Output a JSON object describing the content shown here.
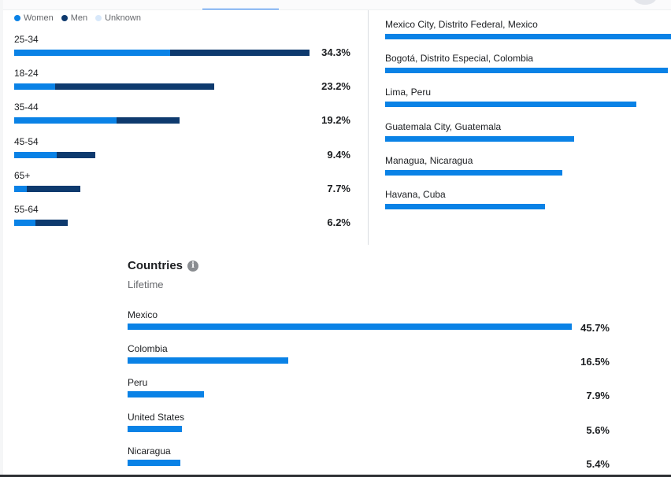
{
  "colors": {
    "women": "#0a82e6",
    "men": "#0e3a6e",
    "unknown": "#d8e8fa",
    "city": "#0a82e6",
    "country": "#0a82e6"
  },
  "legend": [
    {
      "label": "Women",
      "color": "#0a82e6"
    },
    {
      "label": "Men",
      "color": "#0e3a6e"
    },
    {
      "label": "Unknown",
      "color": "#d8e8fa"
    }
  ],
  "chart_data": [
    {
      "type": "bar",
      "stacked": true,
      "orientation": "horizontal",
      "categories": [
        "25-34",
        "18-24",
        "35-44",
        "45-54",
        "65+",
        "55-64"
      ],
      "total_labels": [
        "34.3%",
        "23.2%",
        "19.2%",
        "9.4%",
        "7.7%",
        "6.2%"
      ],
      "series": [
        {
          "name": "Women",
          "values": [
            18.1,
            4.8,
            11.9,
            4.9,
            1.5,
            2.5
          ]
        },
        {
          "name": "Men",
          "values": [
            16.2,
            18.4,
            7.3,
            4.5,
            6.2,
            3.7
          ]
        },
        {
          "name": "Unknown",
          "values": [
            0,
            0,
            0,
            0,
            0,
            0
          ]
        }
      ]
    },
    {
      "type": "bar",
      "orientation": "horizontal",
      "categories": [
        "Mexico City, Distrito Federal, Mexico",
        "Bogotá, Distrito Especial, Colombia",
        "Lima, Peru",
        "Guatemala City, Guatemala",
        "Managua, Nicaragua",
        "Havana, Cuba"
      ],
      "values": [
        100,
        99,
        88,
        66,
        62,
        56
      ]
    },
    {
      "type": "bar",
      "orientation": "horizontal",
      "title": "Countries",
      "subtitle": "Lifetime",
      "categories": [
        "Mexico",
        "Colombia",
        "Peru",
        "United States",
        "Nicaragua"
      ],
      "values": [
        45.7,
        16.5,
        7.9,
        5.6,
        5.4
      ],
      "value_labels": [
        "45.7%",
        "16.5%",
        "7.9%",
        "5.6%",
        "5.4%"
      ]
    }
  ]
}
